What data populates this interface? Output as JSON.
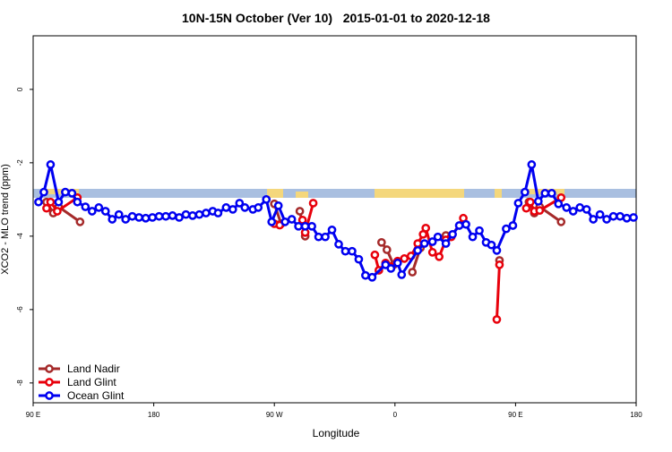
{
  "chart_data": {
    "type": "line",
    "title": "10N-15N October (Ver 10)   2015-01-01 to 2020-12-18",
    "x_label": "Longitude",
    "y_label": "XCO2 - MLO trend (ppm)",
    "xlim": [
      90,
      540
    ],
    "ylim": [
      -8.54,
      1.46
    ],
    "xticks": [
      {
        "value": 90,
        "label": "90 E"
      },
      180,
      {
        "value": 270,
        "label": "90 W"
      },
      {
        "value": 360,
        "label": "0"
      },
      {
        "value": 450,
        "label": "90 E"
      },
      {
        "value": 540,
        "label": "180"
      }
    ],
    "yticks": [
      0,
      -2,
      -4,
      -6,
      -8
    ],
    "legend": "bottom-left",
    "series": [
      {
        "name": "Land Nadir",
        "color": "#a52a2a",
        "x": [
          100,
          105,
          109,
          125,
          null,
          270,
          275,
          null,
          289,
          293,
          null,
          350,
          354,
          359,
          null,
          373,
          379,
          null,
          398,
          null,
          438,
          null,
          460,
          464,
          468,
          484
        ],
        "values": [
          -3.07,
          -3.37,
          -3.2,
          -3.61,
          null,
          -3.12,
          -3.66,
          null,
          -3.32,
          -4.0,
          null,
          -4.17,
          -4.37,
          -4.78,
          null,
          -4.98,
          -4.32,
          null,
          -3.98,
          null,
          -4.66,
          null,
          -3.07,
          -3.37,
          -3.2,
          -3.61
        ]
      },
      {
        "name": "Land Glint",
        "color": "#e8000b",
        "x": [
          100,
          103,
          108,
          123,
          null,
          270,
          274,
          null,
          291,
          293,
          299,
          null,
          345,
          348,
          353,
          357,
          362,
          367,
          372,
          377,
          381,
          383,
          388,
          393,
          398,
          402,
          411,
          null,
          436,
          438,
          null,
          458,
          461,
          464,
          468,
          484
        ],
        "values": [
          -3.24,
          -3.07,
          -3.32,
          -2.95,
          null,
          -3.66,
          -3.7,
          null,
          -3.56,
          -3.9,
          -3.1,
          null,
          -4.51,
          -4.93,
          -4.73,
          -4.83,
          -4.68,
          -4.61,
          -4.54,
          -4.2,
          -3.95,
          -3.78,
          -4.44,
          -4.56,
          -4.1,
          -4.02,
          -3.51,
          null,
          -6.27,
          -4.78,
          null,
          -3.24,
          -3.07,
          -3.32,
          -3.3,
          -2.95
        ]
      },
      {
        "name": "Ocean Glint",
        "color": "#0000f0",
        "x": [
          94,
          98,
          103,
          109,
          114,
          119,
          123,
          129,
          134,
          139,
          144,
          149,
          154,
          159,
          164,
          169,
          174,
          179,
          184,
          189,
          194,
          199,
          204,
          209,
          214,
          219,
          224,
          228,
          234,
          239,
          244,
          248,
          254,
          258,
          264,
          268,
          273,
          278,
          283,
          288,
          293,
          298,
          303,
          308,
          313,
          318,
          323,
          328,
          333,
          338,
          343,
          353,
          357,
          362,
          365,
          377,
          382,
          388,
          392,
          398,
          403,
          408,
          413,
          418,
          423,
          428,
          432,
          436,
          443,
          448,
          452,
          457,
          462,
          467,
          472,
          477,
          482,
          488,
          493,
          498,
          503,
          508,
          513,
          518,
          523,
          528,
          533,
          538
        ],
        "values": [
          -3.07,
          -2.8,
          -2.05,
          -3.07,
          -2.8,
          -2.83,
          -3.07,
          -3.2,
          -3.32,
          -3.22,
          -3.32,
          -3.54,
          -3.41,
          -3.54,
          -3.46,
          -3.49,
          -3.51,
          -3.49,
          -3.46,
          -3.46,
          -3.44,
          -3.49,
          -3.41,
          -3.44,
          -3.41,
          -3.37,
          -3.32,
          -3.37,
          -3.22,
          -3.27,
          -3.1,
          -3.22,
          -3.27,
          -3.22,
          -3.0,
          -3.61,
          -3.17,
          -3.61,
          -3.54,
          -3.73,
          -3.73,
          -3.73,
          -4.02,
          -4.02,
          -3.83,
          -4.22,
          -4.41,
          -4.41,
          -4.63,
          -5.07,
          -5.12,
          -4.78,
          -4.88,
          -4.73,
          -5.05,
          -4.39,
          -4.2,
          -4.15,
          -4.02,
          -4.2,
          -3.95,
          -3.71,
          -3.68,
          -4.02,
          -3.85,
          -4.17,
          -4.24,
          -4.39,
          -3.8,
          -3.71,
          -3.1,
          -2.8,
          -2.05,
          -3.05,
          -2.83,
          -2.83,
          -3.12,
          -3.22,
          -3.32,
          -3.22,
          -3.27,
          -3.54,
          -3.41,
          -3.54,
          -3.46,
          -3.46,
          -3.51,
          -3.49
        ]
      }
    ]
  }
}
